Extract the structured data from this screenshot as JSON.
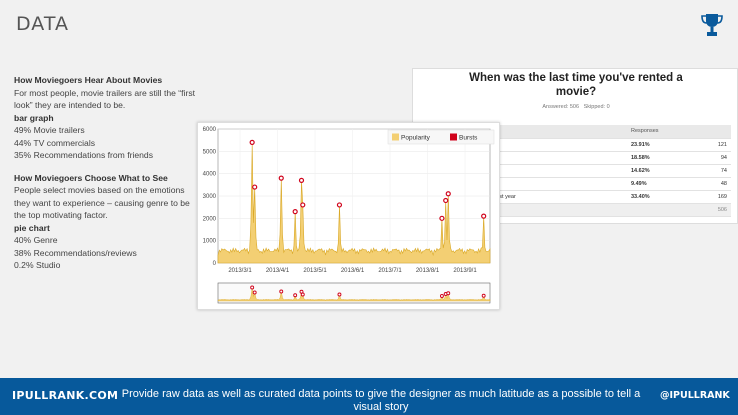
{
  "slide": {
    "title": "DATA"
  },
  "icons": {
    "trophy": "trophy-icon"
  },
  "text": {
    "section1_heading": "How Moviegoers Hear About Movies",
    "section1_body": "For most people, movie trailers are still the “first look” they are intended to be.",
    "section1_chart_type": "bar graph",
    "section1_items": [
      "49% Movie trailers",
      "44% TV commercials",
      "35% Recommendations from friends"
    ],
    "section2_heading": "How Moviegoers Choose What to See",
    "section2_body": "People select movies based on the emotions they want to experience – causing genre to be the top motivating factor.",
    "section2_chart_type": "pie chart",
    "section2_items": [
      "40% Genre",
      "38% Recommendations/reviews",
      "0.2% Studio"
    ]
  },
  "survey": {
    "question": "When was the last time you've rented a movie?",
    "answered": "Answered: 506",
    "skipped": "Skipped: 0",
    "header_responses": "Responses",
    "rows": [
      {
        "label": "",
        "pct": "23.91%",
        "count": "121"
      },
      {
        "label": "",
        "pct": "18.58%",
        "count": "94"
      },
      {
        "label": "",
        "pct": "14.62%",
        "count": "74"
      },
      {
        "label": "",
        "pct": "9.49%",
        "count": "48"
      },
      {
        "label": "last year",
        "pct": "33.40%",
        "count": "169"
      }
    ],
    "total": "506"
  },
  "chart_data": {
    "type": "line",
    "title": "",
    "legend": [
      "Popularity",
      "Bursts"
    ],
    "legend_position": "top-right",
    "colors": {
      "popularity": "#f3cf73",
      "popularity_line": "#d9a826",
      "bursts": "#d0021b"
    },
    "y_ticks": [
      "0",
      "1000",
      "2000",
      "3000",
      "4000",
      "5000",
      "6000"
    ],
    "ylim": [
      0,
      6000
    ],
    "x_ticks": [
      "2013/3/1",
      "2013/4/1",
      "2013/5/1",
      "2013/6/1",
      "2013/7/1",
      "2013/8/1",
      "2013/9/1"
    ],
    "xlim": [
      0,
      215
    ],
    "peaks": [
      {
        "x": 27,
        "y": 5400
      },
      {
        "x": 29,
        "y": 3400
      },
      {
        "x": 50,
        "y": 3800
      },
      {
        "x": 61,
        "y": 2300
      },
      {
        "x": 66,
        "y": 3700
      },
      {
        "x": 67,
        "y": 2600
      },
      {
        "x": 96,
        "y": 2600
      },
      {
        "x": 177,
        "y": 2000
      },
      {
        "x": 180,
        "y": 2800
      },
      {
        "x": 182,
        "y": 3100
      },
      {
        "x": 210,
        "y": 2100
      }
    ]
  },
  "footer": {
    "brand": "IPULLRANK.COM",
    "message": "Provide raw data as well as curated data points to give the designer as much latitude as a possible to tell a visual story",
    "handle": "@IPULLRANK"
  }
}
